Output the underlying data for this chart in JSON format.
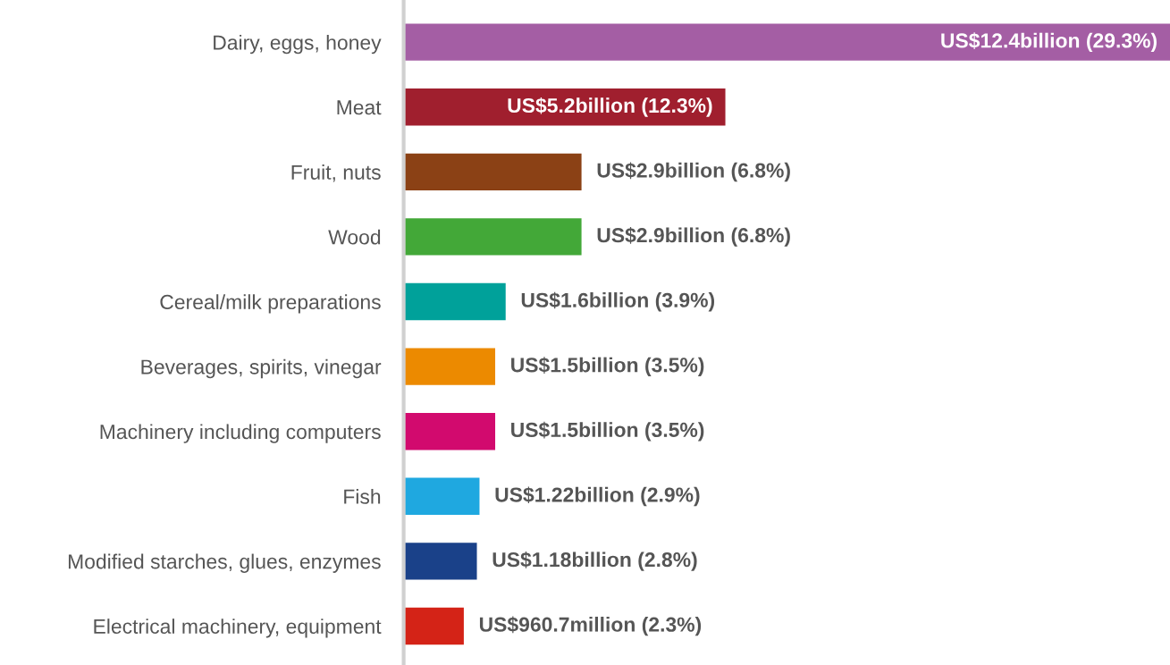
{
  "chart_data": {
    "type": "bar",
    "orientation": "horizontal",
    "categories": [
      "Dairy, eggs, honey",
      "Meat",
      "Fruit, nuts",
      "Wood",
      "Cereal/milk preparations",
      "Beverages, spirits, vinegar",
      "Machinery including computers",
      "Fish",
      "Modified starches, glues, enzymes",
      "Electrical machinery, equipment"
    ],
    "values": [
      29.3,
      12.3,
      6.8,
      6.8,
      3.9,
      3.5,
      3.5,
      2.9,
      2.8,
      2.3
    ],
    "colors": [
      "#a45ea4",
      "#a01f2e",
      "#8b4115",
      "#43a838",
      "#00a19a",
      "#ec8a00",
      "#d20a6e",
      "#1fa8e0",
      "#1a4189",
      "#d42317"
    ],
    "value_labels": [
      "US$12.4billion (29.3%)",
      "US$5.2billion (12.3%)",
      "US$2.9billion (6.8%)",
      "US$2.9billion (6.8%)",
      "US$1.6billion (3.9%)",
      "US$1.5billion (3.5%)",
      "US$1.5billion (3.5%)",
      "US$1.22billion (2.9%)",
      "US$1.18billion (2.8%)",
      "US$960.7million (2.3%)"
    ],
    "grid": false,
    "legend": false
  }
}
